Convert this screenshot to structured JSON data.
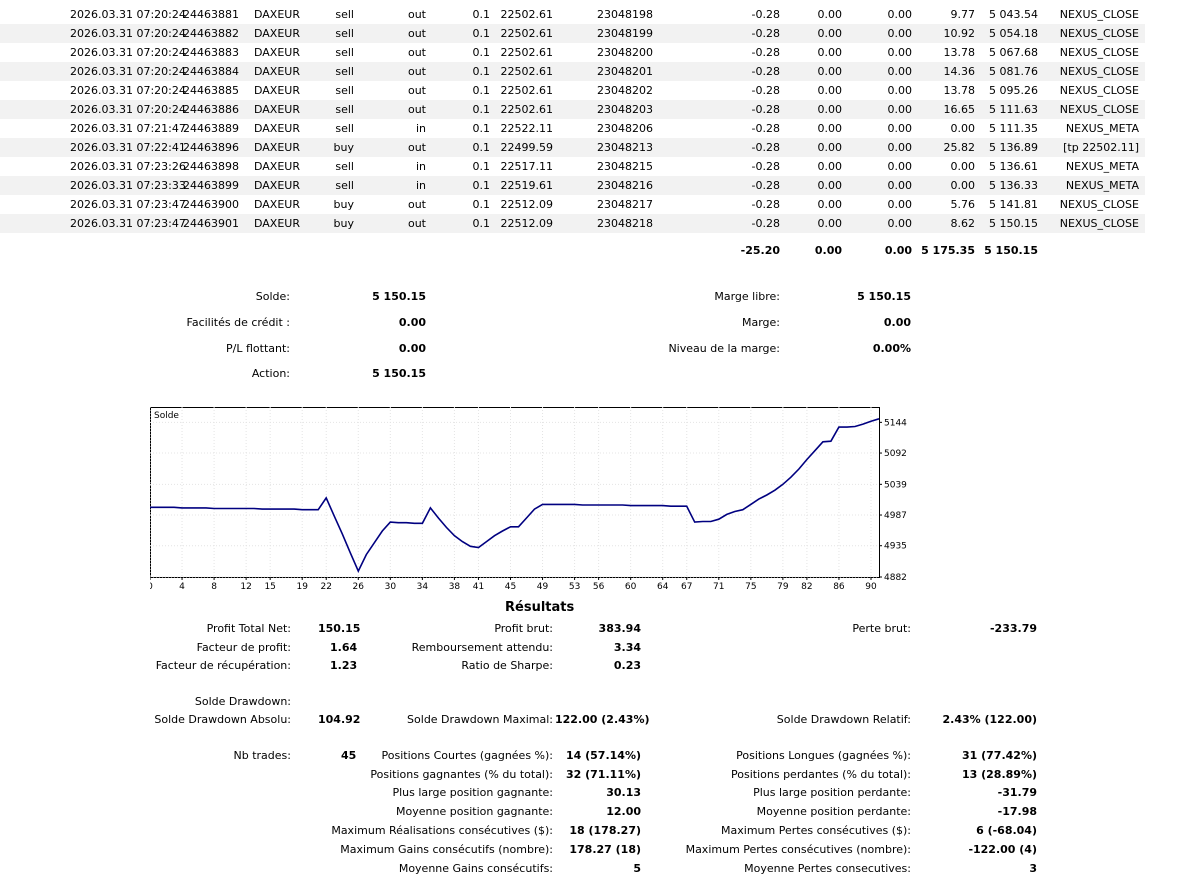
{
  "deals": [
    {
      "time": "2026.03.31 07:20:24",
      "deal": "24463881",
      "symbol": "DAXEUR",
      "type": "sell",
      "direction": "out",
      "volume": "0.1",
      "price": "22502.61",
      "order": "23048198",
      "commission": "-0.28",
      "swap": "0.00",
      "fee": "0.00",
      "profit": "9.77",
      "balance": "5 043.54",
      "comment": "NEXUS_CLOSE"
    },
    {
      "time": "2026.03.31 07:20:24",
      "deal": "24463882",
      "symbol": "DAXEUR",
      "type": "sell",
      "direction": "out",
      "volume": "0.1",
      "price": "22502.61",
      "order": "23048199",
      "commission": "-0.28",
      "swap": "0.00",
      "fee": "0.00",
      "profit": "10.92",
      "balance": "5 054.18",
      "comment": "NEXUS_CLOSE"
    },
    {
      "time": "2026.03.31 07:20:24",
      "deal": "24463883",
      "symbol": "DAXEUR",
      "type": "sell",
      "direction": "out",
      "volume": "0.1",
      "price": "22502.61",
      "order": "23048200",
      "commission": "-0.28",
      "swap": "0.00",
      "fee": "0.00",
      "profit": "13.78",
      "balance": "5 067.68",
      "comment": "NEXUS_CLOSE"
    },
    {
      "time": "2026.03.31 07:20:24",
      "deal": "24463884",
      "symbol": "DAXEUR",
      "type": "sell",
      "direction": "out",
      "volume": "0.1",
      "price": "22502.61",
      "order": "23048201",
      "commission": "-0.28",
      "swap": "0.00",
      "fee": "0.00",
      "profit": "14.36",
      "balance": "5 081.76",
      "comment": "NEXUS_CLOSE"
    },
    {
      "time": "2026.03.31 07:20:24",
      "deal": "24463885",
      "symbol": "DAXEUR",
      "type": "sell",
      "direction": "out",
      "volume": "0.1",
      "price": "22502.61",
      "order": "23048202",
      "commission": "-0.28",
      "swap": "0.00",
      "fee": "0.00",
      "profit": "13.78",
      "balance": "5 095.26",
      "comment": "NEXUS_CLOSE"
    },
    {
      "time": "2026.03.31 07:20:24",
      "deal": "24463886",
      "symbol": "DAXEUR",
      "type": "sell",
      "direction": "out",
      "volume": "0.1",
      "price": "22502.61",
      "order": "23048203",
      "commission": "-0.28",
      "swap": "0.00",
      "fee": "0.00",
      "profit": "16.65",
      "balance": "5 111.63",
      "comment": "NEXUS_CLOSE"
    },
    {
      "time": "2026.03.31 07:21:47",
      "deal": "24463889",
      "symbol": "DAXEUR",
      "type": "sell",
      "direction": "in",
      "volume": "0.1",
      "price": "22522.11",
      "order": "23048206",
      "commission": "-0.28",
      "swap": "0.00",
      "fee": "0.00",
      "profit": "0.00",
      "balance": "5 111.35",
      "comment": "NEXUS_META"
    },
    {
      "time": "2026.03.31 07:22:41",
      "deal": "24463896",
      "symbol": "DAXEUR",
      "type": "buy",
      "direction": "out",
      "volume": "0.1",
      "price": "22499.59",
      "order": "23048213",
      "commission": "-0.28",
      "swap": "0.00",
      "fee": "0.00",
      "profit": "25.82",
      "balance": "5 136.89",
      "comment": "[tp 22502.11]"
    },
    {
      "time": "2026.03.31 07:23:26",
      "deal": "24463898",
      "symbol": "DAXEUR",
      "type": "sell",
      "direction": "in",
      "volume": "0.1",
      "price": "22517.11",
      "order": "23048215",
      "commission": "-0.28",
      "swap": "0.00",
      "fee": "0.00",
      "profit": "0.00",
      "balance": "5 136.61",
      "comment": "NEXUS_META"
    },
    {
      "time": "2026.03.31 07:23:33",
      "deal": "24463899",
      "symbol": "DAXEUR",
      "type": "sell",
      "direction": "in",
      "volume": "0.1",
      "price": "22519.61",
      "order": "23048216",
      "commission": "-0.28",
      "swap": "0.00",
      "fee": "0.00",
      "profit": "0.00",
      "balance": "5 136.33",
      "comment": "NEXUS_META"
    },
    {
      "time": "2026.03.31 07:23:47",
      "deal": "24463900",
      "symbol": "DAXEUR",
      "type": "buy",
      "direction": "out",
      "volume": "0.1",
      "price": "22512.09",
      "order": "23048217",
      "commission": "-0.28",
      "swap": "0.00",
      "fee": "0.00",
      "profit": "5.76",
      "balance": "5 141.81",
      "comment": "NEXUS_CLOSE"
    },
    {
      "time": "2026.03.31 07:23:47",
      "deal": "24463901",
      "symbol": "DAXEUR",
      "type": "buy",
      "direction": "out",
      "volume": "0.1",
      "price": "22512.09",
      "order": "23048218",
      "commission": "-0.28",
      "swap": "0.00",
      "fee": "0.00",
      "profit": "8.62",
      "balance": "5 150.15",
      "comment": "NEXUS_CLOSE"
    }
  ],
  "totals": {
    "commission": "-25.20",
    "swap": "0.00",
    "fee": "0.00",
    "profit": "5 175.35",
    "balance": "5 150.15"
  },
  "account": {
    "left": [
      {
        "label": "Solde:",
        "value": "5 150.15"
      },
      {
        "label": "Facilités de crédit :",
        "value": "0.00"
      },
      {
        "label": "P/L flottant:",
        "value": "0.00"
      },
      {
        "label": "Action:",
        "value": "5 150.15"
      }
    ],
    "right": [
      {
        "label": "Marge libre:",
        "value": "5 150.15"
      },
      {
        "label": "Marge:",
        "value": "0.00"
      },
      {
        "label": "Niveau de la marge:",
        "value": "0.00%"
      }
    ]
  },
  "chart_data": {
    "type": "line",
    "title": "Solde",
    "x": [
      0,
      1,
      2,
      3,
      4,
      5,
      6,
      7,
      8,
      9,
      10,
      11,
      12,
      13,
      14,
      15,
      16,
      17,
      18,
      19,
      20,
      21,
      22,
      23,
      24,
      25,
      26,
      27,
      28,
      29,
      30,
      31,
      32,
      33,
      34,
      35,
      36,
      37,
      38,
      39,
      40,
      41,
      42,
      43,
      44,
      45,
      46,
      47,
      48,
      49,
      50,
      51,
      52,
      53,
      54,
      55,
      56,
      57,
      58,
      59,
      60,
      61,
      62,
      63,
      64,
      65,
      66,
      67,
      68,
      69,
      70,
      71,
      72,
      73,
      74,
      75,
      76,
      77,
      78,
      79,
      80,
      81,
      82,
      83,
      84,
      85,
      86,
      87,
      88,
      89,
      90,
      91
    ],
    "y": [
      5000,
      5000,
      5000,
      5000,
      4999,
      4999,
      4999,
      4999,
      4998,
      4998,
      4998,
      4998,
      4998,
      4998,
      4997,
      4997,
      4997,
      4997,
      4997,
      4996,
      4996,
      4996,
      5016,
      4985,
      4955,
      4923,
      4892,
      4920,
      4940,
      4960,
      4975,
      4974,
      4974,
      4973,
      4973,
      4999,
      4982,
      4966,
      4952,
      4942,
      4934,
      4932,
      4942,
      4952,
      4960,
      4967,
      4967,
      4982,
      4997,
      5005,
      5005,
      5005,
      5005,
      5005,
      5004,
      5004,
      5004,
      5004,
      5004,
      5004,
      5003,
      5003,
      5003,
      5003,
      5003,
      5002,
      5002,
      5002,
      4975,
      4976,
      4976,
      4980,
      4988,
      4993,
      4996,
      5005,
      5014,
      5021,
      5029,
      5039,
      5051,
      5065,
      5081,
      5096,
      5111,
      5112,
      5136,
      5136,
      5137,
      5141,
      5146,
      5150
    ],
    "xlim": [
      0,
      91
    ],
    "ylim": [
      4882,
      5170
    ],
    "y_ticks": [
      4882,
      4935,
      4987,
      5039,
      5092,
      5144
    ],
    "x_ticks": [
      0,
      4,
      8,
      12,
      15,
      19,
      22,
      26,
      30,
      34,
      38,
      41,
      45,
      49,
      53,
      56,
      60,
      64,
      67,
      71,
      75,
      79,
      82,
      86,
      90
    ],
    "line_color": "#000080"
  },
  "results": {
    "title": "Résultats",
    "profit_total_net": {
      "label": "Profit Total Net:",
      "value": "150.15"
    },
    "profit_brut": {
      "label": "Profit brut:",
      "value": "383.94"
    },
    "perte_brut": {
      "label": "Perte brut:",
      "value": "-233.79"
    },
    "facteur_profit": {
      "label": "Facteur de profit:",
      "value": "1.64"
    },
    "remboursement": {
      "label": "Remboursement attendu:",
      "value": "3.34"
    },
    "facteur_recup": {
      "label": "Facteur de récupération:",
      "value": "1.23"
    },
    "sharpe": {
      "label": "Ratio de Sharpe:",
      "value": "0.23"
    },
    "solde_drawdown": {
      "label": "Solde Drawdown:"
    },
    "dd_absolu": {
      "label": "Solde Drawdown Absolu:",
      "value": "104.92"
    },
    "dd_maximal": {
      "label": "Solde Drawdown Maximal:",
      "value": "122.00 (2.43%)"
    },
    "dd_relatif": {
      "label": "Solde Drawdown Relatif:",
      "value": "2.43% (122.00)"
    },
    "nb_trades": {
      "label": "Nb trades:",
      "value": "45"
    },
    "pos_courtes": {
      "label": "Positions Courtes (gagnées %):",
      "value": "14 (57.14%)"
    },
    "pos_longues": {
      "label": "Positions Longues (gagnées %):",
      "value": "31 (77.42%)"
    },
    "pos_gagnantes": {
      "label": "Positions gagnantes (% du total):",
      "value": "32 (71.11%)"
    },
    "pos_perdantes": {
      "label": "Positions perdantes (% du total):",
      "value": "13 (28.89%)"
    },
    "plus_large_gagnante": {
      "label": "Plus large position gagnante:",
      "value": "30.13"
    },
    "plus_large_perdante": {
      "label": "Plus large position perdante:",
      "value": "-31.79"
    },
    "moy_gagnante": {
      "label": "Moyenne position gagnante:",
      "value": "12.00"
    },
    "moy_perdante": {
      "label": "Moyenne position perdante:",
      "value": "-17.98"
    },
    "max_real_consec": {
      "label": "Maximum Réalisations consécutives ($):",
      "value": "18 (178.27)"
    },
    "max_pertes_consec": {
      "label": "Maximum Pertes consécutives ($):",
      "value": "6 (-68.04)"
    },
    "max_gains_nombre": {
      "label": "Maximum Gains consécutifs (nombre):",
      "value": "178.27 (18)"
    },
    "max_pertes_nombre": {
      "label": "Maximum Pertes consécutives (nombre):",
      "value": "-122.00 (4)"
    },
    "moy_gains_consec": {
      "label": "Moyenne Gains consécutifs:",
      "value": "5"
    },
    "moy_pertes_consec": {
      "label": "Moyenne Pertes consecutives:",
      "value": "3"
    }
  }
}
